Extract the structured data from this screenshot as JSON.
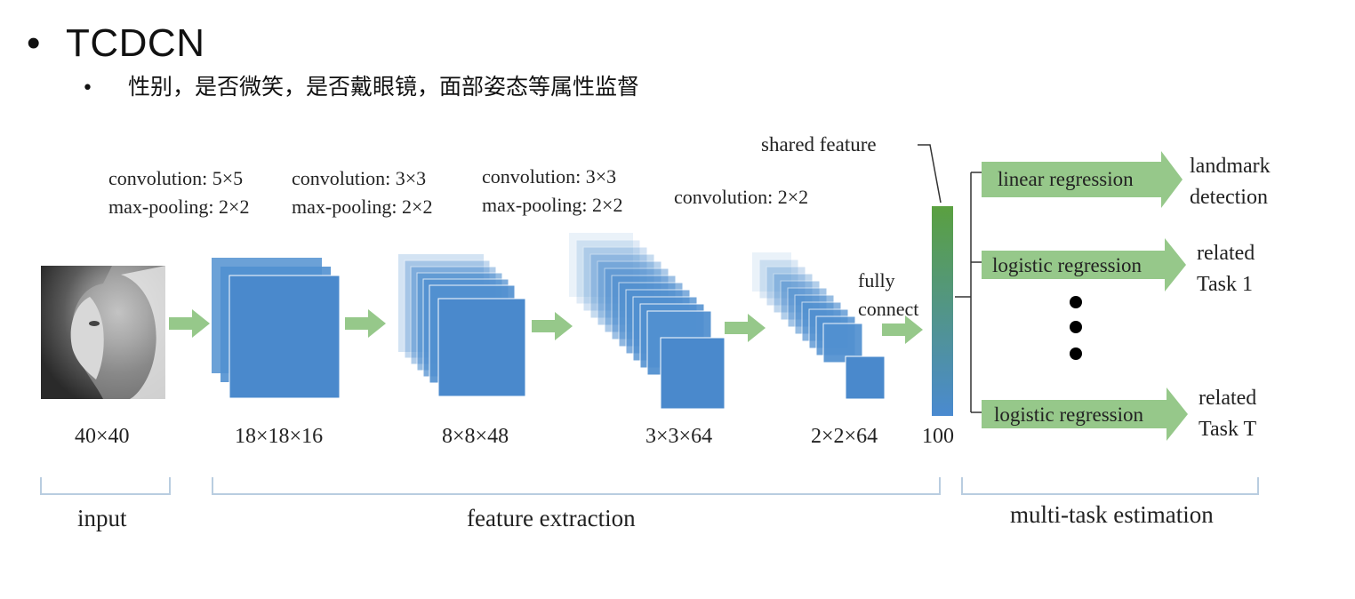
{
  "slide": {
    "title": "TCDCN",
    "bullet": "性别，是否微笑，是否戴眼镜，面部姿态等属性监督"
  },
  "diagram": {
    "layers": [
      {
        "op1": "convolution: 5×5",
        "op2": "max-pooling: 2×2",
        "dim": "40×40"
      },
      {
        "op1": "convolution: 3×3",
        "op2": "max-pooling: 2×2",
        "dim": "18×18×16"
      },
      {
        "op1": "convolution: 3×3",
        "op2": "max-pooling: 2×2",
        "dim": "8×8×48"
      },
      {
        "op1": "convolution: 2×2",
        "dim": "3×3×64"
      },
      {
        "dim": "2×2×64"
      }
    ],
    "fully_connect_1": "fully",
    "fully_connect_2": "connect",
    "shared_feature": "shared feature",
    "feature_dim": "100",
    "tasks": [
      {
        "method": "linear regression",
        "out1": "landmark",
        "out2": "detection"
      },
      {
        "method": "logistic regression",
        "out1": "related",
        "out2": "Task 1"
      },
      {
        "method": "logistic regression",
        "out1": "related",
        "out2": "Task T"
      }
    ],
    "groups": {
      "input": "input",
      "feature": "feature extraction",
      "multitask": "multi-task estimation"
    },
    "colors": {
      "feature_map": "#5190d0",
      "arrow": "#96c88a",
      "bracket": "#b9cde0"
    }
  }
}
